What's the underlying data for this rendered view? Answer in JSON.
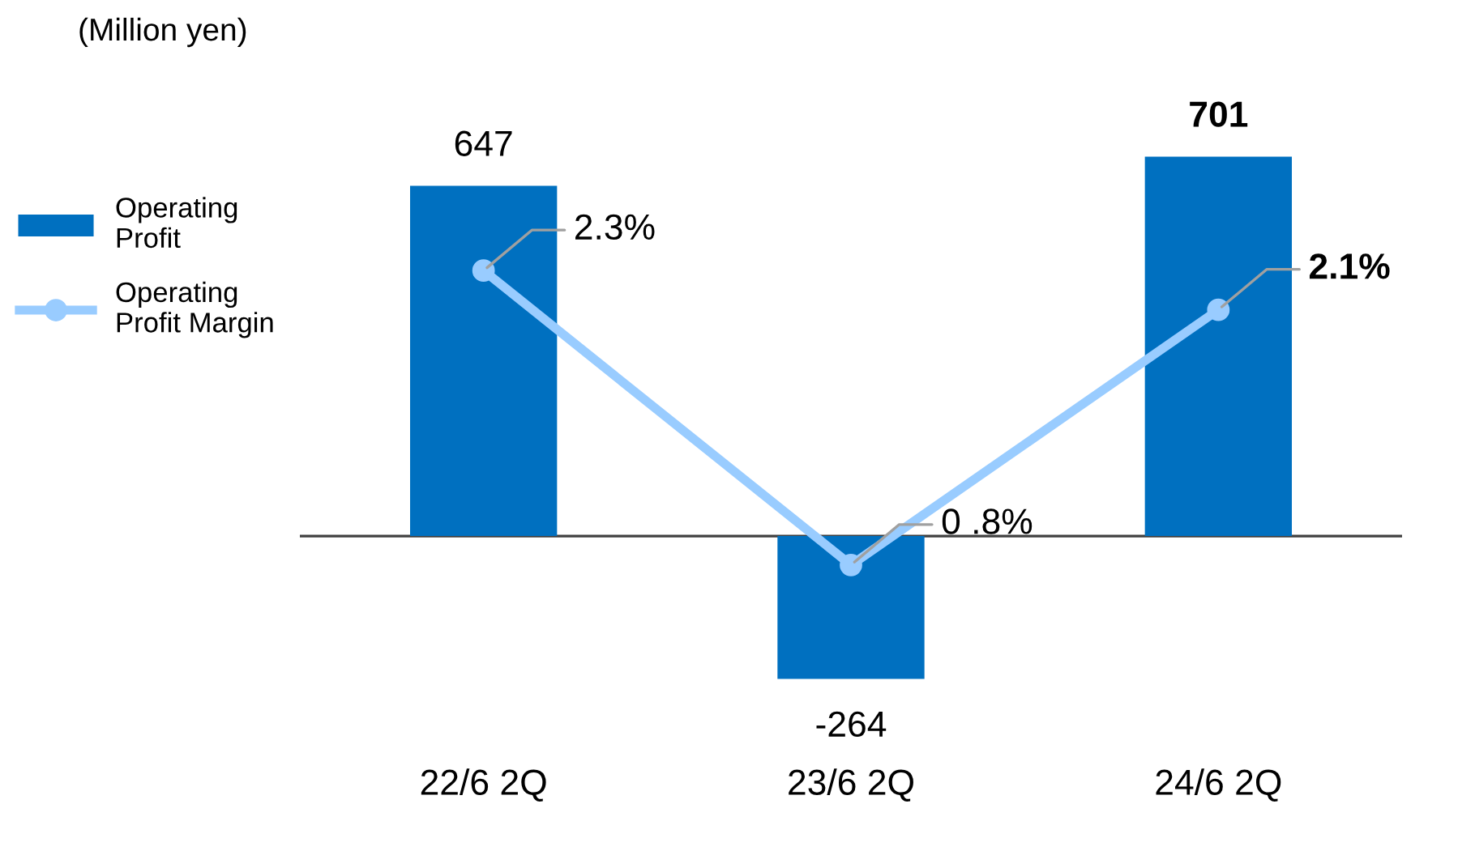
{
  "chart_data": {
    "type": "bar",
    "ylabel": "(Million yen)",
    "categories": [
      "22/6 2Q",
      "23/6 2Q",
      "24/6 2Q"
    ],
    "series": [
      {
        "name": "Operating Profit",
        "color": "#0070c0",
        "values": [
          647,
          -264,
          701
        ],
        "value_labels": [
          "647",
          "-264",
          "701"
        ]
      },
      {
        "name": "Operating Profit Margin",
        "type": "line",
        "axis": "y2",
        "color": "#99ccff",
        "values": [
          2.3,
          0.8,
          2.1
        ],
        "value_labels": [
          "2.3%",
          "0 .8%",
          "2.1%"
        ],
        "marker": "circle",
        "line_style": "solid"
      }
    ],
    "tick_labels": "x",
    "grid": false,
    "legend": "top left"
  }
}
